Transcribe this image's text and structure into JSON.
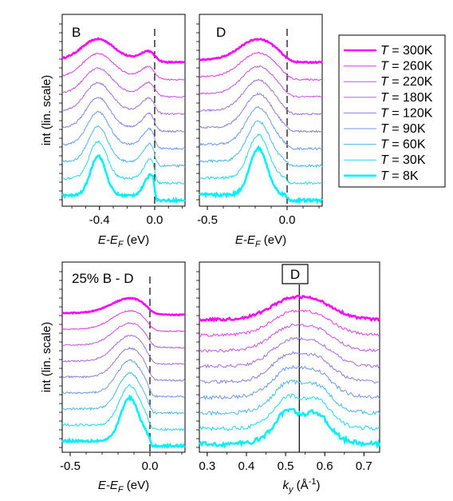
{
  "figure": {
    "ylabel": "int (lin. scale)",
    "energy_xlabel": "E-E",
    "energy_xlabel_sub": "F",
    "energy_xlabel_unit": " (eV)",
    "k_xlabel": "k",
    "k_xlabel_sub": "y",
    "k_xlabel_unit": " (Å",
    "k_xlabel_sup": "-1",
    "k_xlabel_close": ")"
  },
  "legend": {
    "entries": [
      {
        "temp": "T",
        "value": " = 300K",
        "color": "#ff00ff"
      },
      {
        "temp": "T",
        "value": " = 260K",
        "color": "#e438e8"
      },
      {
        "temp": "T",
        "value": " = 220K",
        "color": "#c455e2"
      },
      {
        "temp": "T",
        "value": " = 180K",
        "color": "#a96ae0"
      },
      {
        "temp": "T",
        "value": " = 120K",
        "color": "#8a7ee0"
      },
      {
        "temp": "T",
        "value": " = 90K",
        "color": "#6e99e8"
      },
      {
        "temp": "T",
        "value": " = 60K",
        "color": "#4cb8ec"
      },
      {
        "temp": "T",
        "value": " = 30K",
        "color": "#22d6f2"
      },
      {
        "temp": "T",
        "value": " = 8K",
        "color": "#00f0ff"
      }
    ]
  },
  "chart_data": [
    {
      "type": "line",
      "panel_label": "B",
      "xlabel": "E-E_F (eV)",
      "ylabel": "int (lin. scale)",
      "xlim": [
        -0.67,
        0.22
      ],
      "xticks": [
        -0.4,
        0.0
      ],
      "xtick_labels": [
        "-0.4",
        "0.0"
      ],
      "fermi_level": 0.0,
      "peak_position": -0.41,
      "series_names": [
        "T = 300K",
        "T = 260K",
        "T = 220K",
        "T = 180K",
        "T = 120K",
        "T = 90K",
        "T = 60K",
        "T = 30K",
        "T = 8K"
      ]
    },
    {
      "type": "line",
      "panel_label": "D",
      "xlabel": "E-E_F (eV)",
      "xlim": [
        -0.55,
        0.22
      ],
      "xticks": [
        -0.5,
        0.0
      ],
      "xtick_labels": [
        "-0.5",
        "0.0"
      ],
      "fermi_level": 0.0,
      "peak_position": -0.18,
      "series_names": [
        "T = 300K",
        "T = 260K",
        "T = 220K",
        "T = 180K",
        "T = 120K",
        "T = 90K",
        "T = 60K",
        "T = 30K",
        "T = 8K"
      ]
    },
    {
      "type": "line",
      "panel_label": "25% B - D",
      "xlabel": "E-E_F (eV)",
      "ylabel": "int (lin. scale)",
      "xlim": [
        -0.55,
        0.22
      ],
      "xticks": [
        -0.5,
        0.0
      ],
      "xtick_labels": [
        "-0.5",
        "0.0"
      ],
      "fermi_level": 0.0,
      "peak_position": -0.13,
      "series_names": [
        "T = 300K",
        "T = 260K",
        "T = 220K",
        "T = 180K",
        "T = 120K",
        "T = 90K",
        "T = 60K",
        "T = 30K",
        "T = 8K"
      ]
    },
    {
      "type": "line",
      "panel_label": "D",
      "xlabel": "k_y (Å^-1)",
      "xlim": [
        0.28,
        0.74
      ],
      "xticks": [
        0.3,
        0.4,
        0.5,
        0.6,
        0.7
      ],
      "xtick_labels": [
        "0.3",
        "0.4",
        "0.5",
        "0.6",
        "0.7"
      ],
      "vertical_line": 0.535,
      "peak_positions": [
        0.5,
        0.585
      ],
      "series_names": [
        "T = 300K",
        "T = 260K",
        "T = 220K",
        "T = 180K",
        "T = 120K",
        "T = 90K",
        "T = 60K",
        "T = 30K",
        "T = 8K"
      ]
    }
  ]
}
